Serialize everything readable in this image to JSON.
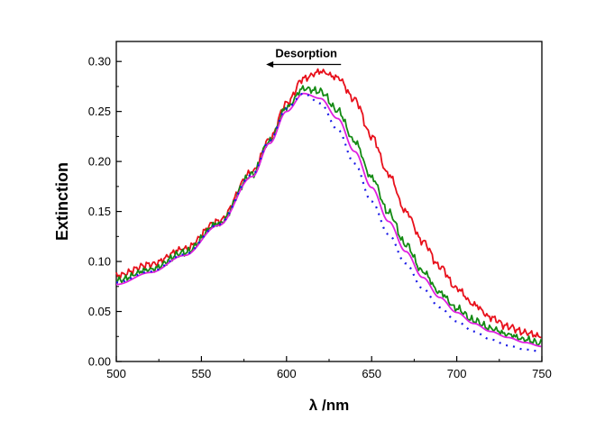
{
  "chart_data": {
    "type": "line",
    "title": "",
    "xlabel": "λ /nm",
    "ylabel": "Extinction",
    "xlim": [
      500,
      750
    ],
    "ylim": [
      0.0,
      0.32
    ],
    "x_ticks": [
      500,
      550,
      600,
      650,
      700,
      750
    ],
    "x_tick_labels": [
      "500",
      "550",
      "600",
      "650",
      "700",
      "750"
    ],
    "y_ticks": [
      0.0,
      0.05,
      0.1,
      0.15,
      0.2,
      0.25,
      0.3
    ],
    "y_tick_labels": [
      "0.00",
      "0.05",
      "0.10",
      "0.15",
      "0.20",
      "0.25",
      "0.30"
    ],
    "grid": false,
    "legend": "none",
    "annotation": {
      "text": "Desorption",
      "arrow": "left",
      "arrow_from": [
        632,
        0.297
      ],
      "arrow_to": [
        588,
        0.297
      ]
    },
    "series": [
      {
        "color": "#e8101b",
        "style": "solid",
        "noisy": true,
        "x": [
          500,
          520,
          540,
          560,
          580,
          590,
          600,
          610,
          620,
          630,
          640,
          650,
          660,
          670,
          680,
          690,
          700,
          710,
          720,
          730,
          740,
          750
        ],
        "values": [
          0.086,
          0.097,
          0.113,
          0.14,
          0.19,
          0.222,
          0.258,
          0.283,
          0.29,
          0.284,
          0.262,
          0.225,
          0.187,
          0.15,
          0.12,
          0.095,
          0.073,
          0.057,
          0.044,
          0.035,
          0.029,
          0.025
        ]
      },
      {
        "color": "#138a13",
        "style": "solid",
        "noisy": true,
        "x": [
          500,
          520,
          540,
          560,
          580,
          590,
          600,
          610,
          620,
          630,
          640,
          650,
          660,
          670,
          680,
          690,
          700,
          710,
          720,
          730,
          740,
          750
        ],
        "values": [
          0.081,
          0.092,
          0.109,
          0.138,
          0.187,
          0.22,
          0.254,
          0.273,
          0.27,
          0.251,
          0.22,
          0.184,
          0.149,
          0.117,
          0.09,
          0.069,
          0.053,
          0.041,
          0.033,
          0.027,
          0.022,
          0.018
        ]
      },
      {
        "color": "#e020e0",
        "style": "solid",
        "noisy": false,
        "x": [
          500,
          520,
          540,
          560,
          580,
          590,
          600,
          610,
          620,
          630,
          640,
          650,
          660,
          670,
          680,
          690,
          700,
          710,
          720,
          730,
          740,
          750
        ],
        "values": [
          0.077,
          0.089,
          0.106,
          0.136,
          0.185,
          0.218,
          0.25,
          0.268,
          0.263,
          0.243,
          0.21,
          0.174,
          0.14,
          0.11,
          0.084,
          0.064,
          0.049,
          0.038,
          0.03,
          0.024,
          0.019,
          0.015
        ]
      },
      {
        "color": "#1a1ae6",
        "style": "dotted",
        "noisy": false,
        "x": [
          500,
          520,
          540,
          560,
          580,
          590,
          600,
          610,
          620,
          630,
          640,
          650,
          660,
          670,
          680,
          690,
          700,
          710,
          720,
          730,
          740,
          750
        ],
        "values": [
          0.079,
          0.09,
          0.107,
          0.137,
          0.187,
          0.221,
          0.253,
          0.268,
          0.258,
          0.232,
          0.198,
          0.16,
          0.127,
          0.098,
          0.073,
          0.054,
          0.04,
          0.03,
          0.022,
          0.016,
          0.012,
          0.01
        ]
      }
    ]
  }
}
